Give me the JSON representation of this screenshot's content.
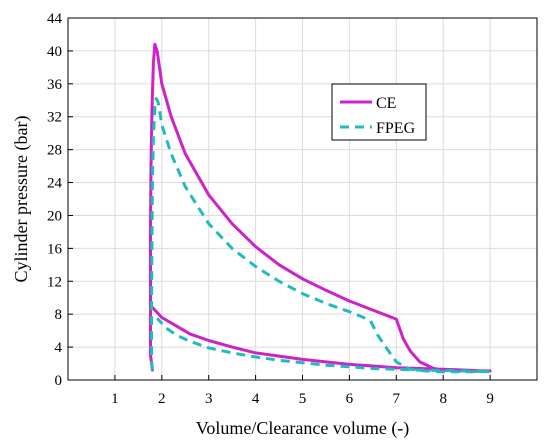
{
  "chart_data": {
    "type": "line",
    "title": "",
    "xlabel": "Volume/Clearance volume (-)",
    "ylabel": "Cylinder pressure (bar)",
    "xlim": [
      0,
      10
    ],
    "ylim": [
      0,
      44
    ],
    "xticks": [
      1,
      2,
      3,
      4,
      5,
      6,
      7,
      8,
      9
    ],
    "yticks": [
      0,
      4,
      8,
      12,
      16,
      20,
      24,
      28,
      32,
      36,
      40,
      44
    ],
    "grid": true,
    "legend": "upper-middle-right",
    "series": [
      {
        "name": "CE",
        "color": "#cc22cc",
        "style": "solid",
        "x": [
          1.8,
          1.76,
          1.76,
          1.76,
          1.76,
          1.77,
          1.79,
          1.82,
          1.85,
          1.9,
          1.95,
          2.0,
          2.2,
          2.5,
          3.0,
          3.5,
          4.0,
          4.5,
          5.0,
          5.5,
          6.0,
          6.5,
          7.0,
          7.15,
          7.3,
          7.5,
          7.8,
          8.0,
          8.4,
          8.8,
          9.0,
          8.8,
          8.5,
          8.0,
          7.5,
          7.0,
          6.5,
          6.0,
          5.5,
          5.0,
          4.5,
          4.0,
          3.5,
          3.0,
          2.6,
          2.3,
          2.0,
          1.9,
          1.85,
          1.8
        ],
        "y": [
          1.2,
          3.0,
          6.0,
          12.0,
          18.0,
          26.0,
          33.0,
          38.5,
          40.8,
          40.0,
          38.0,
          36.0,
          32.0,
          27.5,
          22.5,
          19.0,
          16.2,
          14.0,
          12.3,
          10.9,
          9.6,
          8.5,
          7.4,
          5.0,
          3.5,
          2.2,
          1.4,
          1.2,
          1.1,
          1.05,
          1.1,
          1.1,
          1.2,
          1.3,
          1.4,
          1.5,
          1.7,
          1.9,
          2.2,
          2.5,
          2.9,
          3.3,
          4.0,
          4.8,
          5.6,
          6.6,
          7.6,
          8.2,
          8.5,
          8.8
        ]
      },
      {
        "name": "FPEG",
        "color": "#22bbbb",
        "style": "dashed",
        "x": [
          1.8,
          1.78,
          1.78,
          1.78,
          1.79,
          1.8,
          1.82,
          1.85,
          1.88,
          1.92,
          1.96,
          2.0,
          2.2,
          2.5,
          3.0,
          3.5,
          4.0,
          4.5,
          5.0,
          5.5,
          6.0,
          6.3,
          6.45,
          6.6,
          6.8,
          7.0,
          7.3,
          7.6,
          8.0,
          8.5,
          9.0,
          8.8,
          8.5,
          8.0,
          7.5,
          7.0,
          6.5,
          6.0,
          5.5,
          5.0,
          4.5,
          4.0,
          3.5,
          3.0,
          2.6,
          2.3,
          2.1,
          2.0,
          1.95,
          1.9
        ],
        "y": [
          1.2,
          2.5,
          5.0,
          10.0,
          17.0,
          24.0,
          29.5,
          33.0,
          34.2,
          33.8,
          32.5,
          31.0,
          27.5,
          23.5,
          19.0,
          16.0,
          13.8,
          12.0,
          10.5,
          9.3,
          8.3,
          7.6,
          7.2,
          5.5,
          3.8,
          2.2,
          1.3,
          1.1,
          1.0,
          1.0,
          1.05,
          1.05,
          1.1,
          1.15,
          1.2,
          1.3,
          1.4,
          1.6,
          1.8,
          2.1,
          2.4,
          2.8,
          3.3,
          3.9,
          4.7,
          5.5,
          6.3,
          6.9,
          7.2,
          7.5
        ]
      }
    ]
  }
}
